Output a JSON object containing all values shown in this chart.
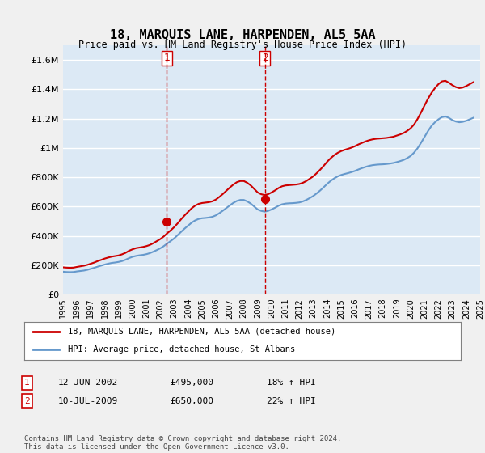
{
  "title": "18, MARQUIS LANE, HARPENDEN, AL5 5AA",
  "subtitle": "Price paid vs. HM Land Registry's House Price Index (HPI)",
  "ylim": [
    0,
    1700000
  ],
  "yticks": [
    0,
    200000,
    400000,
    600000,
    800000,
    1000000,
    1200000,
    1400000,
    1600000
  ],
  "ytick_labels": [
    "£0",
    "£200K",
    "£400K",
    "£600K",
    "£800K",
    "£1M",
    "£1.2M",
    "£1.4M",
    "£1.6M"
  ],
  "x_start_year": 1995,
  "x_end_year": 2025,
  "xtick_years": [
    1995,
    1996,
    1997,
    1998,
    1999,
    2000,
    2001,
    2002,
    2003,
    2004,
    2005,
    2006,
    2007,
    2008,
    2009,
    2010,
    2011,
    2012,
    2013,
    2014,
    2015,
    2016,
    2017,
    2018,
    2019,
    2020,
    2021,
    2022,
    2023,
    2024,
    2025
  ],
  "bg_color": "#dce9f5",
  "plot_bg_color": "#dce9f5",
  "grid_color": "#ffffff",
  "red_line_color": "#cc0000",
  "blue_line_color": "#6699cc",
  "sale1_year": 2002.45,
  "sale1_price": 495000,
  "sale2_year": 2009.53,
  "sale2_price": 650000,
  "marker_color": "#cc0000",
  "vline_color": "#cc0000",
  "legend_label_red": "18, MARQUIS LANE, HARPENDEN, AL5 5AA (detached house)",
  "legend_label_blue": "HPI: Average price, detached house, St Albans",
  "table_row1": [
    "1",
    "12-JUN-2002",
    "£495,000",
    "18% ↑ HPI"
  ],
  "table_row2": [
    "2",
    "10-JUL-2009",
    "£650,000",
    "22% ↑ HPI"
  ],
  "footer": "Contains HM Land Registry data © Crown copyright and database right 2024.\nThis data is licensed under the Open Government Licence v3.0.",
  "hpi_data_x": [
    1995.0,
    1995.25,
    1995.5,
    1995.75,
    1996.0,
    1996.25,
    1996.5,
    1996.75,
    1997.0,
    1997.25,
    1997.5,
    1997.75,
    1998.0,
    1998.25,
    1998.5,
    1998.75,
    1999.0,
    1999.25,
    1999.5,
    1999.75,
    2000.0,
    2000.25,
    2000.5,
    2000.75,
    2001.0,
    2001.25,
    2001.5,
    2001.75,
    2002.0,
    2002.25,
    2002.5,
    2002.75,
    2003.0,
    2003.25,
    2003.5,
    2003.75,
    2004.0,
    2004.25,
    2004.5,
    2004.75,
    2005.0,
    2005.25,
    2005.5,
    2005.75,
    2006.0,
    2006.25,
    2006.5,
    2006.75,
    2007.0,
    2007.25,
    2007.5,
    2007.75,
    2008.0,
    2008.25,
    2008.5,
    2008.75,
    2009.0,
    2009.25,
    2009.5,
    2009.75,
    2010.0,
    2010.25,
    2010.5,
    2010.75,
    2011.0,
    2011.25,
    2011.5,
    2011.75,
    2012.0,
    2012.25,
    2012.5,
    2012.75,
    2013.0,
    2013.25,
    2013.5,
    2013.75,
    2014.0,
    2014.25,
    2014.5,
    2014.75,
    2015.0,
    2015.25,
    2015.5,
    2015.75,
    2016.0,
    2016.25,
    2016.5,
    2016.75,
    2017.0,
    2017.25,
    2017.5,
    2017.75,
    2018.0,
    2018.25,
    2018.5,
    2018.75,
    2019.0,
    2019.25,
    2019.5,
    2019.75,
    2020.0,
    2020.25,
    2020.5,
    2020.75,
    2021.0,
    2021.25,
    2021.5,
    2021.75,
    2022.0,
    2022.25,
    2022.5,
    2022.75,
    2023.0,
    2023.25,
    2023.5,
    2023.75,
    2024.0,
    2024.25,
    2024.5
  ],
  "hpi_data_y": [
    155000,
    153000,
    152000,
    153000,
    157000,
    160000,
    163000,
    168000,
    175000,
    182000,
    190000,
    197000,
    204000,
    210000,
    215000,
    218000,
    222000,
    228000,
    237000,
    248000,
    257000,
    263000,
    267000,
    270000,
    275000,
    282000,
    292000,
    303000,
    315000,
    330000,
    348000,
    365000,
    383000,
    405000,
    428000,
    450000,
    470000,
    490000,
    505000,
    515000,
    520000,
    522000,
    525000,
    530000,
    540000,
    555000,
    572000,
    590000,
    608000,
    625000,
    638000,
    645000,
    645000,
    635000,
    620000,
    600000,
    580000,
    570000,
    565000,
    570000,
    580000,
    592000,
    605000,
    615000,
    620000,
    622000,
    623000,
    625000,
    628000,
    635000,
    645000,
    658000,
    672000,
    690000,
    710000,
    732000,
    755000,
    775000,
    792000,
    805000,
    815000,
    822000,
    828000,
    835000,
    843000,
    853000,
    862000,
    870000,
    877000,
    882000,
    885000,
    887000,
    888000,
    890000,
    893000,
    897000,
    903000,
    910000,
    918000,
    930000,
    945000,
    968000,
    998000,
    1035000,
    1075000,
    1115000,
    1150000,
    1175000,
    1195000,
    1210000,
    1215000,
    1205000,
    1190000,
    1180000,
    1175000,
    1178000,
    1185000,
    1195000,
    1205000
  ],
  "price_data_x": [
    1995.0,
    1995.25,
    1995.5,
    1995.75,
    1996.0,
    1996.25,
    1996.5,
    1996.75,
    1997.0,
    1997.25,
    1997.5,
    1997.75,
    1998.0,
    1998.25,
    1998.5,
    1998.75,
    1999.0,
    1999.25,
    1999.5,
    1999.75,
    2000.0,
    2000.25,
    2000.5,
    2000.75,
    2001.0,
    2001.25,
    2001.5,
    2001.75,
    2002.0,
    2002.25,
    2002.5,
    2002.75,
    2003.0,
    2003.25,
    2003.5,
    2003.75,
    2004.0,
    2004.25,
    2004.5,
    2004.75,
    2005.0,
    2005.25,
    2005.5,
    2005.75,
    2006.0,
    2006.25,
    2006.5,
    2006.75,
    2007.0,
    2007.25,
    2007.5,
    2007.75,
    2008.0,
    2008.25,
    2008.5,
    2008.75,
    2009.0,
    2009.25,
    2009.5,
    2009.75,
    2010.0,
    2010.25,
    2010.5,
    2010.75,
    2011.0,
    2011.25,
    2011.5,
    2011.75,
    2012.0,
    2012.25,
    2012.5,
    2012.75,
    2013.0,
    2013.25,
    2013.5,
    2013.75,
    2014.0,
    2014.25,
    2014.5,
    2014.75,
    2015.0,
    2015.25,
    2015.5,
    2015.75,
    2016.0,
    2016.25,
    2016.5,
    2016.75,
    2017.0,
    2017.25,
    2017.5,
    2017.75,
    2018.0,
    2018.25,
    2018.5,
    2018.75,
    2019.0,
    2019.25,
    2019.5,
    2019.75,
    2020.0,
    2020.25,
    2020.5,
    2020.75,
    2021.0,
    2021.25,
    2021.5,
    2021.75,
    2022.0,
    2022.25,
    2022.5,
    2022.75,
    2023.0,
    2023.25,
    2023.5,
    2023.75,
    2024.0,
    2024.25,
    2024.5
  ],
  "price_data_y": [
    185000,
    183000,
    182000,
    183000,
    188000,
    192000,
    196000,
    202000,
    210000,
    218000,
    228000,
    236000,
    245000,
    252000,
    258000,
    262000,
    266000,
    274000,
    284000,
    298000,
    308000,
    316000,
    320000,
    324000,
    330000,
    338000,
    350000,
    364000,
    378000,
    396000,
    418000,
    438000,
    460000,
    486000,
    514000,
    540000,
    564000,
    588000,
    606000,
    618000,
    624000,
    627000,
    630000,
    636000,
    648000,
    666000,
    686000,
    708000,
    730000,
    750000,
    766000,
    774000,
    774000,
    762000,
    744000,
    720000,
    696000,
    684000,
    678000,
    684000,
    696000,
    710000,
    726000,
    738000,
    744000,
    746000,
    748000,
    750000,
    754000,
    762000,
    774000,
    790000,
    806000,
    828000,
    852000,
    878000,
    906000,
    930000,
    950000,
    966000,
    978000,
    987000,
    994000,
    1002000,
    1012000,
    1024000,
    1034000,
    1044000,
    1052000,
    1058000,
    1062000,
    1064000,
    1066000,
    1068000,
    1072000,
    1076000,
    1084000,
    1092000,
    1102000,
    1116000,
    1134000,
    1160000,
    1198000,
    1242000,
    1290000,
    1335000,
    1375000,
    1408000,
    1435000,
    1454000,
    1458000,
    1445000,
    1428000,
    1415000,
    1408000,
    1412000,
    1422000,
    1435000,
    1448000
  ]
}
